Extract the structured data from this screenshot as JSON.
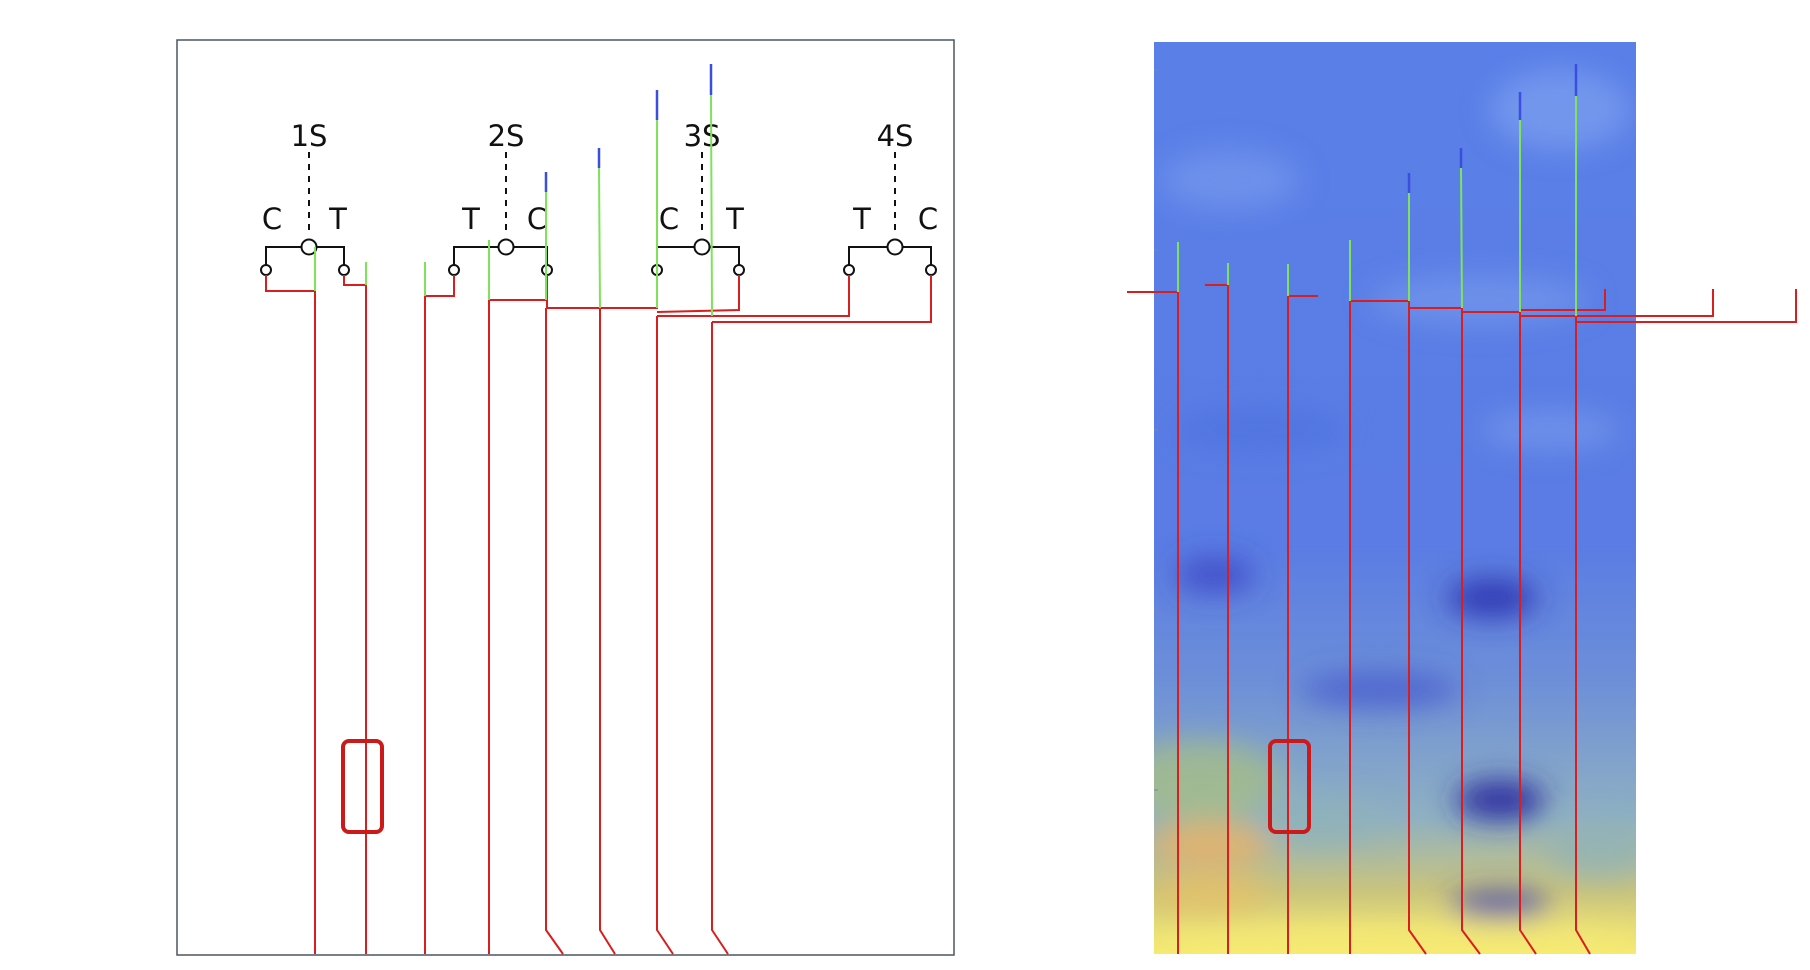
{
  "colors": {
    "trace": "#d81e1e",
    "green_segment": "#7fe35a",
    "blue_tip": "#3a4fe0",
    "schematic": "#111111",
    "panel_border": "#4a5560",
    "highlight_box": "#cc1a1a",
    "heatmap_low": "#2d2fb5",
    "heatmap_mid": "#5f7fe6",
    "heatmap_high": "#f3e36a"
  },
  "sites": [
    {
      "name": "1S",
      "left_label": "C",
      "right_label": "T"
    },
    {
      "name": "2S",
      "left_label": "T",
      "right_label": "C"
    },
    {
      "name": "3S",
      "left_label": "C",
      "right_label": "T"
    },
    {
      "name": "4S",
      "left_label": "T",
      "right_label": "C"
    }
  ],
  "panels": {
    "left": {
      "content": "branch schematic with traces"
    },
    "right": {
      "content": "heatmap background with overlaid traces"
    }
  },
  "icons": {
    "junction": "open-circle-icon",
    "terminal": "small-circle-icon"
  }
}
